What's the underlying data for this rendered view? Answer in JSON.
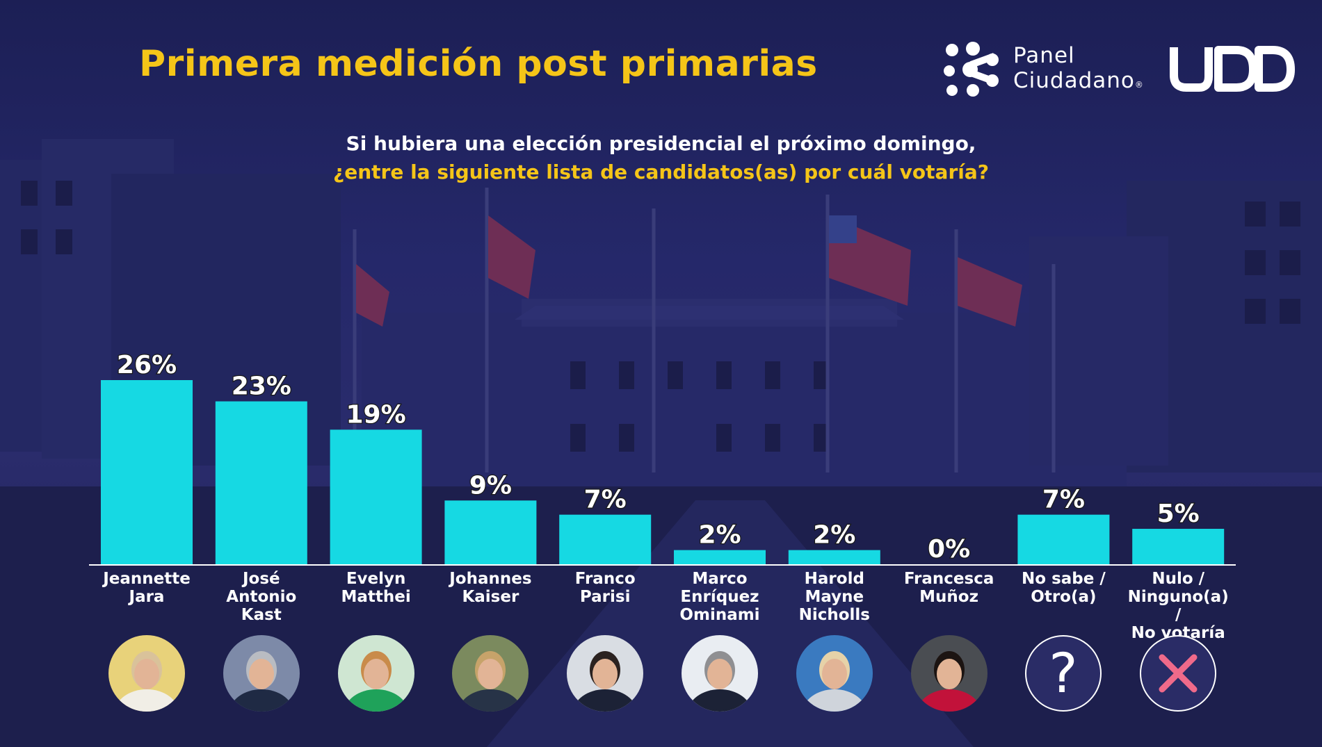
{
  "header": {
    "title": "Primera medición post primarias",
    "question_line1": "Si hubiera una elección presidencial el próximo domingo,",
    "question_line2": "¿entre la siguiente lista de candidatos(as) por cuál votaría?"
  },
  "logos": {
    "panel_line1": "Panel",
    "panel_line2": "Ciudadano",
    "panel_mark": "®",
    "udd": "UDD"
  },
  "colors": {
    "bar": "#16d9e3",
    "title": "#f5c518",
    "background": "#23265f"
  },
  "chart_data": {
    "type": "bar",
    "categories": [
      "Jeannette\nJara",
      "José\nAntonio\nKast",
      "Evelyn\nMatthei",
      "Johannes\nKaiser",
      "Franco\nParisi",
      "Marco\nEnríquez\nOminami",
      "Harold\nMayne\nNicholls",
      "Francesca\nMuñoz",
      "No sabe /\nOtro(a)",
      "Nulo /\nNinguno(a) /\nNo votaría"
    ],
    "values": [
      26,
      23,
      19,
      9,
      7,
      2,
      2,
      0,
      7,
      5
    ],
    "value_labels": [
      "26%",
      "23%",
      "19%",
      "9%",
      "7%",
      "2%",
      "2%",
      "0%",
      "7%",
      "5%"
    ],
    "unit": "%",
    "ylim": [
      0,
      26
    ],
    "grid": false,
    "legend": "none"
  },
  "avatars": [
    "candidate-photo",
    "candidate-photo",
    "candidate-photo",
    "candidate-photo",
    "candidate-photo",
    "candidate-photo",
    "candidate-photo",
    "candidate-photo",
    "question-mark-icon",
    "x-mark-icon"
  ]
}
